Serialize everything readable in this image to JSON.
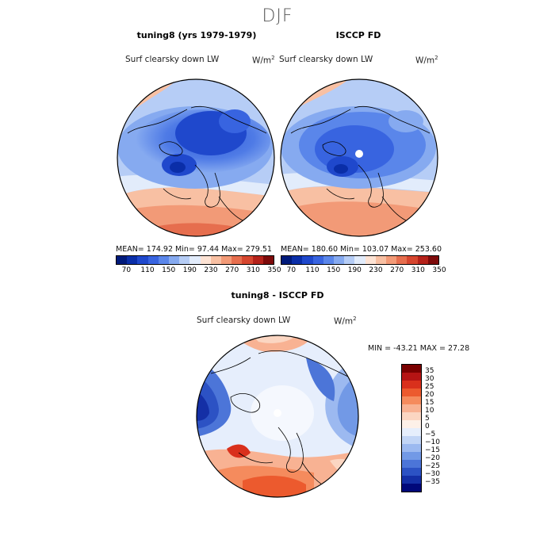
{
  "figure": {
    "title": "DJF"
  },
  "panels": [
    {
      "title": "tuning8 (yrs 1979-1979)",
      "variable": "Surf clearsky down LW",
      "unit": "W/m",
      "unit_sup": "2",
      "stats": "MEAN= 174.92  Min=  97.44  Max= 279.51",
      "mean": 174.92,
      "min": 97.44,
      "max": 279.51
    },
    {
      "title": "ISCCP FD",
      "variable": "Surf clearsky down LW",
      "unit": "W/m",
      "unit_sup": "2",
      "stats": "MEAN= 180.60  Min= 103.07  Max= 253.60",
      "mean": 180.6,
      "min": 103.07,
      "max": 253.6
    },
    {
      "title": "tuning8 - ISCCP FD",
      "variable": "Surf clearsky down LW",
      "unit": "W/m",
      "unit_sup": "2",
      "stats": "MIN = -43.21 MAX =  27.28",
      "min": -43.21,
      "max": 27.28
    }
  ],
  "colorbar_abs": {
    "colors": [
      "#001a7a",
      "#0a2ea8",
      "#1f48cc",
      "#3864e0",
      "#5a86ea",
      "#86aaf0",
      "#b6cdf6",
      "#e2ecfb",
      "#fde3d4",
      "#f8c0a3",
      "#f29a77",
      "#e66e4e",
      "#d6462f",
      "#b5221a",
      "#7d0a0a"
    ],
    "ticks": [
      "70",
      "110",
      "150",
      "190",
      "230",
      "270",
      "310",
      "350"
    ]
  },
  "colorbar_diff": {
    "colors": [
      "#7a0000",
      "#b51414",
      "#d9301c",
      "#ec5a2e",
      "#f58b5d",
      "#f8b293",
      "#fbd6c2",
      "#fdf0e8",
      "#e6eefc",
      "#c2d5f6",
      "#9cb9f0",
      "#7299e6",
      "#4c75d8",
      "#2c52c4",
      "#142fa6",
      "#00087a"
    ],
    "labels": [
      "35",
      "30",
      "25",
      "20",
      "15",
      "10",
      "5",
      "0",
      "-5",
      "-10",
      "-15",
      "-20",
      "-25",
      "-30",
      "-35"
    ]
  }
}
